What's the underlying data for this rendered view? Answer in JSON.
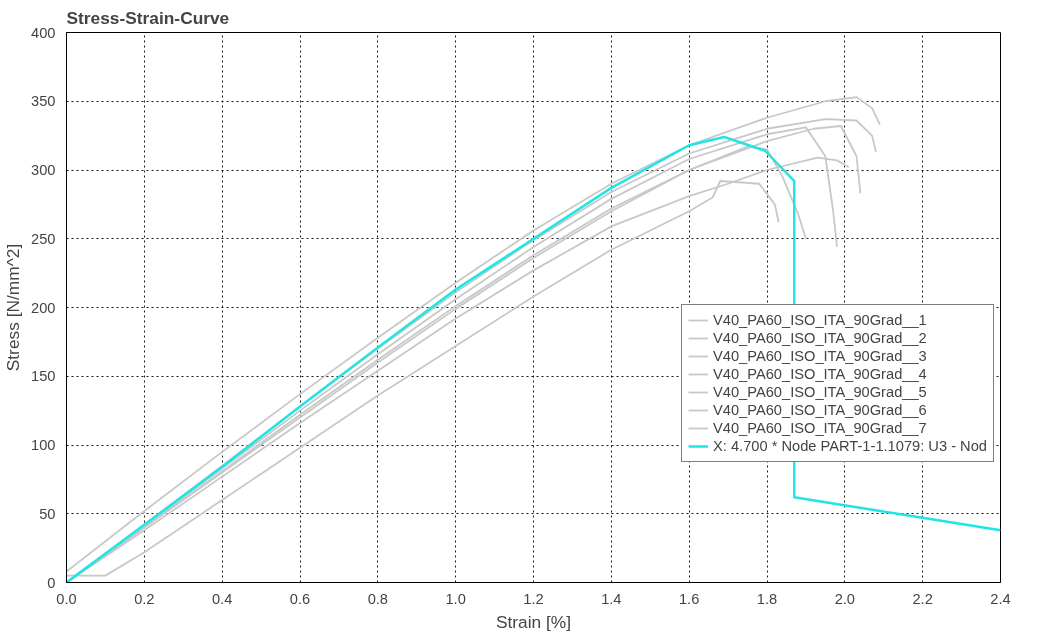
{
  "chart_data": {
    "type": "line",
    "title": "Stress-Strain-Curve",
    "xlabel": "Strain [%]",
    "ylabel": "Stress [N/mm^2]",
    "xlim": [
      0,
      2.4
    ],
    "ylim": [
      0,
      400
    ],
    "xticks": [
      {
        "value": 0,
        "label": "0.0"
      },
      0.2,
      0.4,
      0.6,
      0.8,
      {
        "value": 1,
        "label": "1.0"
      },
      1.2,
      1.4,
      1.6,
      1.8,
      {
        "value": 2,
        "label": "2.0"
      },
      2.2,
      2.4
    ],
    "yticks": [
      0,
      50,
      100,
      150,
      200,
      250,
      300,
      350,
      400
    ],
    "grid": true,
    "legend": "right",
    "line_style": "solid",
    "series": [
      {
        "name": "V40_PA60_ISO_ITA_90Grad__1",
        "color": "#c8c8c8",
        "x": [
          0,
          0.2,
          0.4,
          0.6,
          0.8,
          1.0,
          1.2,
          1.4,
          1.6,
          1.8,
          1.95,
          2.03,
          2.07,
          2.09
        ],
        "values": [
          8,
          52,
          95,
          137,
          178,
          218,
          256,
          290,
          318,
          338,
          350,
          353,
          345,
          333
        ]
      },
      {
        "name": "V40_PA60_ISO_ITA_90Grad__2",
        "color": "#c8c8c8",
        "x": [
          0,
          0.2,
          0.4,
          0.6,
          0.8,
          1.0,
          1.2,
          1.4,
          1.6,
          1.8,
          1.95,
          2.03,
          2.07,
          2.08
        ],
        "values": [
          0,
          42,
          85,
          128,
          170,
          211,
          249,
          284,
          312,
          330,
          337,
          336,
          325,
          313
        ]
      },
      {
        "name": "V40_PA60_ISO_ITA_90Grad__3",
        "color": "#c8c8c8",
        "x": [
          0,
          0.2,
          0.4,
          0.6,
          0.8,
          1.0,
          1.2,
          1.4,
          1.6,
          1.8,
          1.92,
          1.99,
          2.03,
          2.04
        ],
        "values": [
          0,
          40,
          81,
          122,
          162,
          201,
          238,
          272,
          300,
          321,
          330,
          332,
          310,
          283
        ]
      },
      {
        "name": "V40_PA60_ISO_ITA_90Grad__4",
        "color": "#c8c8c8",
        "x": [
          0,
          0.2,
          0.4,
          0.6,
          0.8,
          1.0,
          1.2,
          1.4,
          1.6,
          1.8,
          1.9,
          1.95,
          1.97,
          1.98
        ],
        "values": [
          0,
          41,
          83,
          125,
          166,
          206,
          244,
          279,
          308,
          326,
          331,
          310,
          270,
          244
        ]
      },
      {
        "name": "V40_PA60_ISO_ITA_90Grad__5",
        "color": "#c8c8c8",
        "x": [
          0,
          0.2,
          0.4,
          0.6,
          0.8,
          1.0,
          1.2,
          1.4,
          1.6,
          1.75,
          1.8,
          1.84,
          1.88,
          1.9
        ],
        "values": [
          0,
          40,
          80,
          120,
          160,
          199,
          236,
          270,
          300,
          317,
          315,
          295,
          268,
          250
        ]
      },
      {
        "name": "V40_PA60_ISO_ITA_90Grad__6",
        "color": "#c8c8c8",
        "x": [
          0,
          0.1,
          0.2,
          0.4,
          0.6,
          0.8,
          1.0,
          1.2,
          1.4,
          1.6,
          1.66,
          1.68,
          1.78,
          1.82,
          1.83
        ],
        "values": [
          5,
          5,
          22,
          60,
          98,
          136,
          172,
          208,
          242,
          270,
          280,
          292,
          290,
          275,
          262
        ]
      },
      {
        "name": "V40_PA60_ISO_ITA_90Grad__7",
        "color": "#c8c8c8",
        "x": [
          0,
          0.2,
          0.4,
          0.6,
          0.8,
          1.0,
          1.2,
          1.4,
          1.6,
          1.7,
          1.8,
          1.93,
          1.98,
          2.01
        ],
        "values": [
          0,
          38,
          77,
          116,
          154,
          192,
          227,
          259,
          281,
          290,
          300,
          309,
          307,
          302
        ]
      },
      {
        "name": "X: 4.700 * Node PART-1-1.1079: U3 - Nod",
        "color": "#1ee6e6",
        "x": [
          0,
          0.2,
          0.4,
          0.6,
          0.8,
          1.0,
          1.2,
          1.4,
          1.6,
          1.69,
          1.795,
          1.87,
          1.87,
          2.4
        ],
        "values": [
          0,
          42,
          84,
          128,
          171,
          213,
          250,
          287,
          318,
          324,
          314,
          292,
          62,
          38
        ]
      }
    ]
  }
}
